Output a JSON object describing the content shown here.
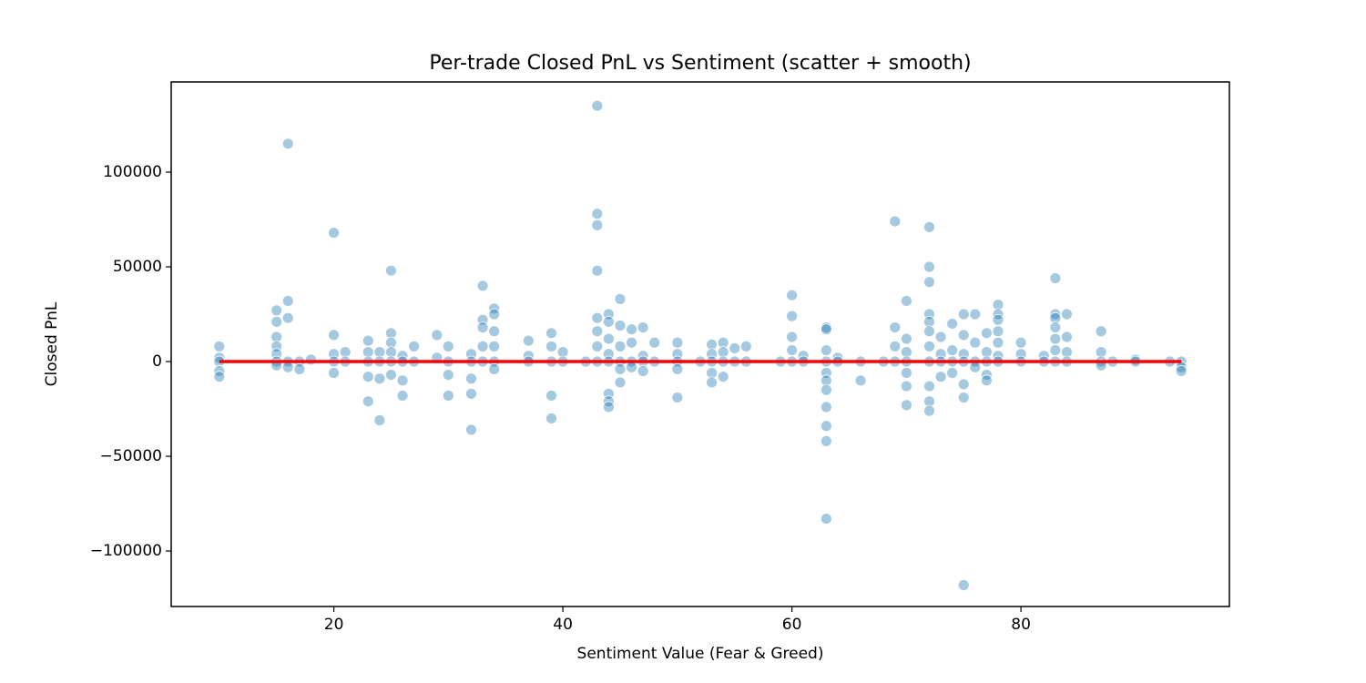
{
  "chart_data": {
    "type": "scatter",
    "title": "Per-trade Closed PnL vs Sentiment (scatter + smooth)",
    "x_label": "Sentiment Value (Fear & Greed)",
    "y_label": "Closed PnL",
    "xlim": [
      5.8,
      98.2
    ],
    "ylim": [
      -129300,
      147600
    ],
    "xticks": [
      20,
      40,
      60,
      80
    ],
    "yticks": [
      {
        "value": -100000,
        "label": "−100000"
      },
      {
        "value": -50000,
        "label": "−50000"
      },
      0,
      50000,
      100000
    ],
    "grid": false,
    "series": [
      {
        "type": "scatter",
        "color": "#1f77b4",
        "x": [
          10,
          10,
          10,
          10,
          10,
          15,
          15,
          15,
          15,
          15,
          15,
          15,
          16,
          16,
          16,
          16,
          16,
          17,
          17,
          18,
          20,
          20,
          20,
          20,
          20,
          21,
          21,
          23,
          23,
          23,
          23,
          23,
          24,
          24,
          24,
          24,
          25,
          25,
          25,
          25,
          25,
          25,
          26,
          26,
          26,
          26,
          27,
          27,
          29,
          29,
          30,
          30,
          30,
          30,
          32,
          32,
          32,
          32,
          32,
          33,
          33,
          33,
          33,
          33,
          34,
          34,
          34,
          34,
          34,
          34,
          37,
          37,
          37,
          39,
          39,
          39,
          39,
          39,
          40,
          40,
          42,
          43,
          43,
          43,
          43,
          43,
          43,
          43,
          43,
          44,
          44,
          44,
          44,
          44,
          44,
          44,
          44,
          45,
          45,
          45,
          45,
          45,
          45,
          46,
          46,
          46,
          46,
          47,
          47,
          47,
          47,
          48,
          48,
          50,
          50,
          50,
          50,
          50,
          52,
          53,
          53,
          53,
          53,
          53,
          54,
          54,
          54,
          54,
          55,
          55,
          56,
          56,
          59,
          60,
          60,
          60,
          60,
          60,
          61,
          61,
          63,
          63,
          63,
          63,
          63,
          63,
          63,
          63,
          63,
          63,
          63,
          64,
          64,
          66,
          66,
          68,
          69,
          69,
          69,
          69,
          70,
          70,
          70,
          70,
          70,
          70,
          70,
          72,
          72,
          72,
          72,
          72,
          72,
          72,
          72,
          72,
          72,
          72,
          73,
          73,
          73,
          73,
          74,
          74,
          74,
          74,
          75,
          75,
          75,
          75,
          75,
          75,
          75,
          76,
          76,
          76,
          76,
          77,
          77,
          77,
          77,
          77,
          78,
          78,
          78,
          78,
          78,
          78,
          78,
          80,
          80,
          80,
          82,
          82,
          83,
          83,
          83,
          83,
          83,
          83,
          83,
          84,
          84,
          84,
          84,
          87,
          87,
          87,
          87,
          88,
          90,
          90,
          93,
          94,
          94,
          94
        ],
        "values": [
          8000,
          2000,
          0,
          -5000,
          -8000,
          27000,
          21000,
          13000,
          8000,
          4000,
          0,
          -2000,
          115000,
          32000,
          23000,
          0,
          -3000,
          0,
          -4000,
          1000,
          68000,
          14000,
          4000,
          0,
          -6000,
          5000,
          0,
          11000,
          5000,
          0,
          -8000,
          -21000,
          5000,
          0,
          -9000,
          -31000,
          48000,
          15000,
          10000,
          5000,
          0,
          -7000,
          3000,
          0,
          -10000,
          -18000,
          8000,
          0,
          14000,
          2000,
          8000,
          0,
          -7000,
          -18000,
          4000,
          0,
          -9000,
          -17000,
          -36000,
          40000,
          22000,
          18000,
          8000,
          0,
          28000,
          25000,
          16000,
          8000,
          0,
          -4000,
          11000,
          3000,
          0,
          15000,
          8000,
          0,
          -18000,
          -30000,
          5000,
          0,
          0,
          135000,
          78000,
          72000,
          48000,
          23000,
          16000,
          8000,
          0,
          25000,
          21000,
          12000,
          4000,
          0,
          -17000,
          -21000,
          -24000,
          33000,
          19000,
          8000,
          0,
          -4000,
          -11000,
          17000,
          10000,
          0,
          -3000,
          18000,
          3000,
          0,
          -5000,
          10000,
          0,
          10000,
          4000,
          0,
          -4000,
          -19000,
          0,
          9000,
          4000,
          0,
          -6000,
          -11000,
          10000,
          5000,
          0,
          -8000,
          7000,
          0,
          8000,
          0,
          0,
          35000,
          24000,
          13000,
          6000,
          0,
          3000,
          0,
          18000,
          17000,
          6000,
          0,
          -6000,
          -10000,
          -15000,
          -24000,
          -34000,
          -42000,
          -83000,
          2000,
          0,
          0,
          -10000,
          0,
          74000,
          18000,
          8000,
          0,
          32000,
          12000,
          5000,
          0,
          -6000,
          -13000,
          -23000,
          71000,
          50000,
          42000,
          25000,
          21000,
          16000,
          8000,
          0,
          -13000,
          -21000,
          -26000,
          13000,
          4000,
          0,
          -8000,
          20000,
          6000,
          0,
          -6000,
          25000,
          14000,
          4000,
          0,
          -12000,
          -19000,
          -118000,
          25000,
          10000,
          0,
          -3000,
          15000,
          5000,
          0,
          -7000,
          -10000,
          30000,
          25000,
          22000,
          16000,
          10000,
          3000,
          0,
          10000,
          4000,
          0,
          3000,
          0,
          44000,
          25000,
          23000,
          18000,
          12000,
          6000,
          0,
          25000,
          13000,
          5000,
          0,
          16000,
          5000,
          0,
          -2000,
          0,
          1000,
          0,
          0,
          0,
          -3000,
          -5000
        ]
      },
      {
        "type": "line",
        "color": "#ff0000",
        "x": [
          10,
          30,
          50,
          70,
          94
        ],
        "values": [
          0,
          0,
          0,
          0,
          0
        ]
      }
    ]
  }
}
